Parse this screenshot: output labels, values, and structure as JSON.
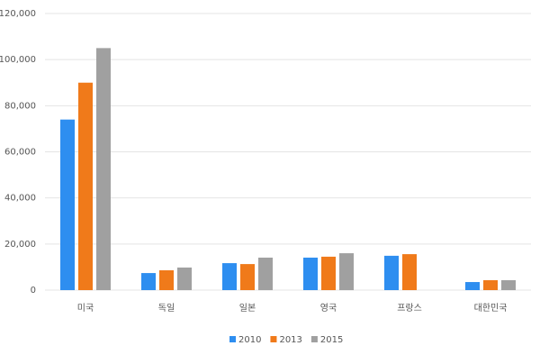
{
  "chart_data": {
    "type": "bar",
    "categories": [
      "미국",
      "독일",
      "일본",
      "영국",
      "프랑스",
      "대한민국"
    ],
    "series": [
      {
        "name": "2010",
        "color": "#2e8ef0",
        "values": [
          74000,
          7400,
          11700,
          14100,
          14900,
          3500
        ]
      },
      {
        "name": "2013",
        "color": "#f07a1a",
        "values": [
          90000,
          8600,
          11300,
          14500,
          15600,
          4300
        ]
      },
      {
        "name": "2015",
        "color": "#a0a0a0",
        "values": [
          105000,
          9800,
          14100,
          16000,
          null,
          4300
        ]
      }
    ],
    "ylim": [
      0,
      120000
    ],
    "yticks": [
      0,
      {
        "value": 20000,
        "label": "20,000"
      },
      {
        "value": 40000,
        "label": "40,000"
      },
      {
        "value": 60000,
        "label": "60,000"
      },
      {
        "value": 80000,
        "label": "80,000"
      },
      {
        "value": 100000,
        "label": "100,000"
      },
      {
        "value": 120000,
        "label": "120,000"
      }
    ],
    "grid": true,
    "legend": "bottom"
  }
}
